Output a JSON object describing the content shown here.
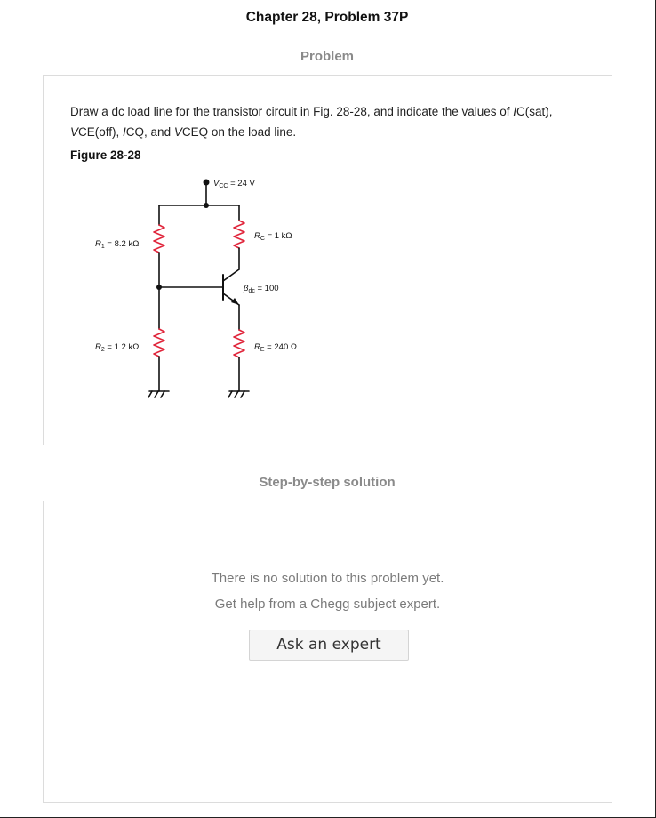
{
  "page": {
    "title": "Chapter 28, Problem 37P"
  },
  "problem": {
    "heading": "Problem",
    "text_html": "Draw a dc load line for the transistor circuit in Fig. 28-28, and indicate the values of <i>I</i>C(sat), <i>V</i>CE(off), <i>I</i>CQ, and <i>V</i>CEQ on the load line.",
    "figure_label": "Figure 28-28",
    "figure": {
      "vcc_value": "= 24 V",
      "r1_value": "= 8.2 kΩ",
      "r2_value": "= 1.2 kΩ",
      "rc_value": "= 1 kΩ",
      "re_value": "= 240 Ω",
      "beta_value": "= 100",
      "resistor_color": "#e0243a"
    }
  },
  "solution": {
    "heading": "Step-by-step solution",
    "no_solution_text": "There is no solution to this problem yet.",
    "help_text": "Get help from a Chegg subject expert.",
    "ask_button_label": "Ask an expert"
  }
}
